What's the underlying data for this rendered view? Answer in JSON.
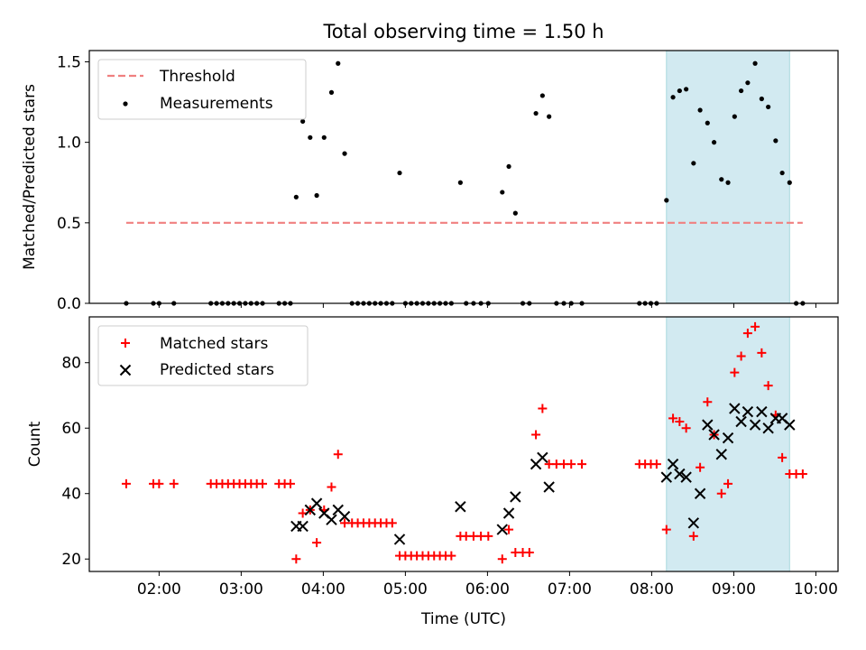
{
  "title": "Total observing time = 1.50 h",
  "xlabel": "Time (UTC)",
  "x_ticks": [
    {
      "hour": 2,
      "label": "02:00"
    },
    {
      "hour": 3,
      "label": "03:00"
    },
    {
      "hour": 4,
      "label": "04:00"
    },
    {
      "hour": 5,
      "label": "05:00"
    },
    {
      "hour": 6,
      "label": "06:00"
    },
    {
      "hour": 7,
      "label": "07:00"
    },
    {
      "hour": 8,
      "label": "08:00"
    },
    {
      "hour": 9,
      "label": "09:00"
    },
    {
      "hour": 10,
      "label": "10:00"
    }
  ],
  "colors": {
    "threshold": "#f08080",
    "measurements": "#000000",
    "matched": "#ff0000",
    "predicted": "#000000",
    "span_fill": "#add8e6",
    "span_edge": "#a8d8dd"
  },
  "chart_data": [
    {
      "type": "scatter",
      "title": "Total observing time = 1.50 h",
      "xlabel": "",
      "ylabel": "Matched/Predicted stars",
      "xlim": [
        1.15,
        10.27
      ],
      "ylim": [
        0,
        1.57
      ],
      "yticks": [
        0.0,
        0.5,
        1.0,
        1.5
      ],
      "ytick_labels": [
        "0.0",
        "0.5",
        "1.0",
        "1.5"
      ],
      "legend": "upper left",
      "grid": false,
      "highlight_span": [
        8.18,
        9.68
      ],
      "threshold": {
        "name": "Threshold",
        "y": 0.5,
        "x_range": [
          1.6,
          9.84
        ]
      },
      "series": [
        {
          "name": "Measurements",
          "marker": "dot",
          "points": [
            [
              1.6,
              0
            ],
            [
              1.93,
              0
            ],
            [
              2.0,
              0
            ],
            [
              2.18,
              0
            ],
            [
              2.63,
              0
            ],
            [
              2.7,
              0
            ],
            [
              2.77,
              0
            ],
            [
              2.84,
              0
            ],
            [
              2.91,
              0
            ],
            [
              2.98,
              0
            ],
            [
              3.05,
              0
            ],
            [
              3.12,
              0
            ],
            [
              3.19,
              0
            ],
            [
              3.26,
              0
            ],
            [
              3.46,
              0
            ],
            [
              3.53,
              0
            ],
            [
              3.6,
              0
            ],
            [
              3.67,
              0.66
            ],
            [
              3.75,
              1.13
            ],
            [
              3.84,
              1.03
            ],
            [
              3.92,
              0.67
            ],
            [
              4.01,
              1.03
            ],
            [
              4.1,
              1.31
            ],
            [
              4.18,
              1.49
            ],
            [
              4.26,
              0.93
            ],
            [
              4.35,
              0
            ],
            [
              4.42,
              0
            ],
            [
              4.49,
              0
            ],
            [
              4.56,
              0
            ],
            [
              4.63,
              0
            ],
            [
              4.7,
              0
            ],
            [
              4.77,
              0
            ],
            [
              4.84,
              0
            ],
            [
              4.93,
              0.81
            ],
            [
              5.0,
              0
            ],
            [
              5.07,
              0
            ],
            [
              5.14,
              0
            ],
            [
              5.21,
              0
            ],
            [
              5.28,
              0
            ],
            [
              5.35,
              0
            ],
            [
              5.42,
              0
            ],
            [
              5.49,
              0
            ],
            [
              5.56,
              0
            ],
            [
              5.67,
              0.75
            ],
            [
              5.74,
              0
            ],
            [
              5.83,
              0
            ],
            [
              5.92,
              0
            ],
            [
              6.01,
              0
            ],
            [
              6.18,
              0.69
            ],
            [
              6.26,
              0.85
            ],
            [
              6.34,
              0.56
            ],
            [
              6.43,
              0
            ],
            [
              6.51,
              0
            ],
            [
              6.59,
              1.18
            ],
            [
              6.67,
              1.29
            ],
            [
              6.75,
              1.16
            ],
            [
              6.84,
              0
            ],
            [
              6.93,
              0
            ],
            [
              7.02,
              0
            ],
            [
              7.15,
              0
            ],
            [
              7.85,
              0
            ],
            [
              7.92,
              0
            ],
            [
              7.99,
              0
            ],
            [
              8.06,
              0
            ],
            [
              8.18,
              0.64
            ],
            [
              8.26,
              1.28
            ],
            [
              8.34,
              1.32
            ],
            [
              8.42,
              1.33
            ],
            [
              8.51,
              0.87
            ],
            [
              8.59,
              1.2
            ],
            [
              8.68,
              1.12
            ],
            [
              8.76,
              1.0
            ],
            [
              8.85,
              0.77
            ],
            [
              8.93,
              0.75
            ],
            [
              9.01,
              1.16
            ],
            [
              9.09,
              1.32
            ],
            [
              9.17,
              1.37
            ],
            [
              9.26,
              1.49
            ],
            [
              9.34,
              1.27
            ],
            [
              9.42,
              1.22
            ],
            [
              9.51,
              1.01
            ],
            [
              9.59,
              0.81
            ],
            [
              9.68,
              0.75
            ],
            [
              9.76,
              0
            ],
            [
              9.84,
              0
            ]
          ]
        }
      ]
    },
    {
      "type": "scatter",
      "title": "",
      "xlabel": "Time (UTC)",
      "ylabel": "Count",
      "xlim": [
        1.15,
        10.27
      ],
      "ylim": [
        16.2,
        94
      ],
      "yticks": [
        20,
        40,
        60,
        80
      ],
      "ytick_labels": [
        "20",
        "40",
        "60",
        "80"
      ],
      "legend": "upper left",
      "grid": false,
      "highlight_span": [
        8.18,
        9.68
      ],
      "series": [
        {
          "name": "Matched stars",
          "marker": "plus",
          "points": [
            [
              1.6,
              43
            ],
            [
              1.93,
              43
            ],
            [
              2.0,
              43
            ],
            [
              2.18,
              43
            ],
            [
              2.63,
              43
            ],
            [
              2.7,
              43
            ],
            [
              2.77,
              43
            ],
            [
              2.84,
              43
            ],
            [
              2.91,
              43
            ],
            [
              2.98,
              43
            ],
            [
              3.05,
              43
            ],
            [
              3.12,
              43
            ],
            [
              3.19,
              43
            ],
            [
              3.26,
              43
            ],
            [
              3.46,
              43
            ],
            [
              3.53,
              43
            ],
            [
              3.6,
              43
            ],
            [
              3.67,
              20
            ],
            [
              3.75,
              34
            ],
            [
              3.84,
              35
            ],
            [
              3.92,
              25
            ],
            [
              4.01,
              35
            ],
            [
              4.1,
              42
            ],
            [
              4.18,
              52
            ],
            [
              4.26,
              31
            ],
            [
              4.35,
              31
            ],
            [
              4.42,
              31
            ],
            [
              4.49,
              31
            ],
            [
              4.56,
              31
            ],
            [
              4.63,
              31
            ],
            [
              4.7,
              31
            ],
            [
              4.77,
              31
            ],
            [
              4.84,
              31
            ],
            [
              4.93,
              21
            ],
            [
              5.0,
              21
            ],
            [
              5.07,
              21
            ],
            [
              5.14,
              21
            ],
            [
              5.21,
              21
            ],
            [
              5.28,
              21
            ],
            [
              5.35,
              21
            ],
            [
              5.42,
              21
            ],
            [
              5.49,
              21
            ],
            [
              5.56,
              21
            ],
            [
              5.67,
              27
            ],
            [
              5.74,
              27
            ],
            [
              5.83,
              27
            ],
            [
              5.92,
              27
            ],
            [
              6.01,
              27
            ],
            [
              6.18,
              20
            ],
            [
              6.26,
              29
            ],
            [
              6.34,
              22
            ],
            [
              6.43,
              22
            ],
            [
              6.51,
              22
            ],
            [
              6.59,
              58
            ],
            [
              6.67,
              66
            ],
            [
              6.75,
              49
            ],
            [
              6.84,
              49
            ],
            [
              6.93,
              49
            ],
            [
              7.02,
              49
            ],
            [
              7.15,
              49
            ],
            [
              7.85,
              49
            ],
            [
              7.92,
              49
            ],
            [
              7.99,
              49
            ],
            [
              8.06,
              49
            ],
            [
              8.18,
              29
            ],
            [
              8.26,
              63
            ],
            [
              8.34,
              62
            ],
            [
              8.42,
              60
            ],
            [
              8.51,
              27
            ],
            [
              8.59,
              48
            ],
            [
              8.68,
              68
            ],
            [
              8.76,
              58
            ],
            [
              8.85,
              40
            ],
            [
              8.93,
              43
            ],
            [
              9.01,
              77
            ],
            [
              9.09,
              82
            ],
            [
              9.17,
              89
            ],
            [
              9.26,
              91
            ],
            [
              9.34,
              83
            ],
            [
              9.42,
              73
            ],
            [
              9.51,
              64
            ],
            [
              9.59,
              51
            ],
            [
              9.68,
              46
            ],
            [
              9.76,
              46
            ],
            [
              9.84,
              46
            ]
          ]
        },
        {
          "name": "Predicted stars",
          "marker": "x",
          "points": [
            [
              3.67,
              30
            ],
            [
              3.75,
              30
            ],
            [
              3.84,
              35
            ],
            [
              3.92,
              37
            ],
            [
              4.01,
              34
            ],
            [
              4.1,
              32
            ],
            [
              4.18,
              35
            ],
            [
              4.26,
              33
            ],
            [
              4.93,
              26
            ],
            [
              5.67,
              36
            ],
            [
              6.18,
              29
            ],
            [
              6.26,
              34
            ],
            [
              6.34,
              39
            ],
            [
              6.59,
              49
            ],
            [
              6.67,
              51
            ],
            [
              6.75,
              42
            ],
            [
              8.18,
              45
            ],
            [
              8.26,
              49
            ],
            [
              8.34,
              46
            ],
            [
              8.42,
              45
            ],
            [
              8.51,
              31
            ],
            [
              8.59,
              40
            ],
            [
              8.68,
              61
            ],
            [
              8.76,
              58
            ],
            [
              8.85,
              52
            ],
            [
              8.93,
              57
            ],
            [
              9.01,
              66
            ],
            [
              9.09,
              62
            ],
            [
              9.17,
              65
            ],
            [
              9.26,
              61
            ],
            [
              9.34,
              65
            ],
            [
              9.42,
              60
            ],
            [
              9.51,
              63
            ],
            [
              9.59,
              63
            ],
            [
              9.68,
              61
            ]
          ]
        }
      ]
    }
  ]
}
